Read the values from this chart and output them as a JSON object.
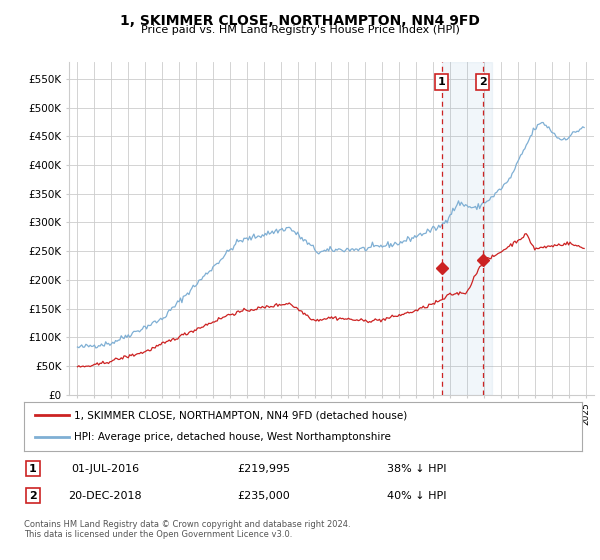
{
  "title": "1, SKIMMER CLOSE, NORTHAMPTON, NN4 9FD",
  "subtitle": "Price paid vs. HM Land Registry's House Price Index (HPI)",
  "background_color": "#ffffff",
  "plot_bg_color": "#ffffff",
  "grid_color": "#cccccc",
  "hpi_color": "#7fafd4",
  "price_color": "#cc2222",
  "ylim": [
    0,
    580000
  ],
  "yticks": [
    0,
    50000,
    100000,
    150000,
    200000,
    250000,
    300000,
    350000,
    400000,
    450000,
    500000,
    550000
  ],
  "ytick_labels": [
    "£0",
    "£50K",
    "£100K",
    "£150K",
    "£200K",
    "£250K",
    "£300K",
    "£350K",
    "£400K",
    "£450K",
    "£500K",
    "£550K"
  ],
  "xlim": [
    1994.5,
    2025.5
  ],
  "sale1_label": "1",
  "sale2_label": "2",
  "sale1_price": 219995,
  "sale2_price": 235000,
  "sale1_date": "01-JUL-2016",
  "sale2_date": "20-DEC-2018",
  "sale1_pct": "38% ↓ HPI",
  "sale2_pct": "40% ↓ HPI",
  "legend1": "1, SKIMMER CLOSE, NORTHAMPTON, NN4 9FD (detached house)",
  "legend2": "HPI: Average price, detached house, West Northamptonshire",
  "footer": "Contains HM Land Registry data © Crown copyright and database right 2024.\nThis data is licensed under the Open Government Licence v3.0.",
  "sale1_x": 2016.5,
  "sale1_y": 219995,
  "sale2_x": 2018.917,
  "sale2_y": 235000,
  "dashed_x1": 2016.5,
  "dashed_x2": 2018.917,
  "span_x1": 2016.5,
  "span_x2": 2019.5
}
